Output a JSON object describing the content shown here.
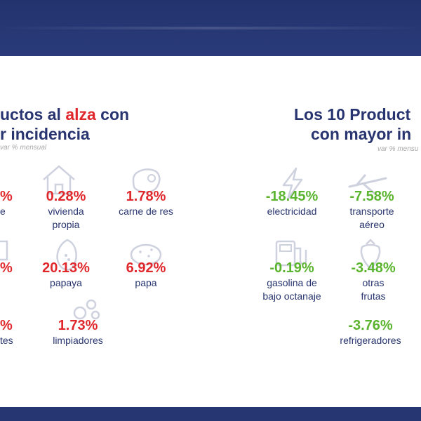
{
  "colors": {
    "navy": "#27346f",
    "red": "#e0282c",
    "green": "#5ab42e",
    "gray_note": "#a9a9a9",
    "background": "#253673"
  },
  "left": {
    "title_line1_pre": "uctos al ",
    "title_line1_accent": "alza",
    "title_line1_post": " con",
    "title_line2": "r incidencia",
    "note": "var % mensual",
    "items": [
      {
        "value": "%",
        "label": "e",
        "icon": "building-icon"
      },
      {
        "value": "0.28%",
        "label_1": "vivienda",
        "label_2": "propia",
        "icon": "house-icon"
      },
      {
        "value": "1.78%",
        "label": "carne de res",
        "icon": "steak-icon"
      },
      {
        "value": "%",
        "label": "",
        "icon": "bottle-icon"
      },
      {
        "value": "20.13%",
        "label": "papaya",
        "icon": "papaya-icon"
      },
      {
        "value": "6.92%",
        "label": "papa",
        "icon": "potato-icon"
      },
      {
        "value": "%",
        "label": "tes"
      },
      {
        "value": "1.73%",
        "label": "limpiadores",
        "icon": "bubbles-icon"
      }
    ]
  },
  "right": {
    "title_line1": "Los 10 Product",
    "title_line2": "con mayor in",
    "note": "var % mensu",
    "items": [
      {
        "value": "-18.45%",
        "label": "electricidad",
        "icon": "lightning-icon"
      },
      {
        "value": "-7.58%",
        "label_1": "transporte",
        "label_2": "aéreo",
        "icon": "airplane-icon"
      },
      {
        "value": "-0.19%",
        "label_1": "gasolina de",
        "label_2": "bajo octanaje",
        "icon": "gas-pump-icon"
      },
      {
        "value": "-3.48%",
        "label_1": "otras",
        "label_2": "frutas",
        "icon": "strawberry-icon"
      },
      {
        "value": "-3.76%",
        "label": "refrigeradores"
      }
    ]
  }
}
